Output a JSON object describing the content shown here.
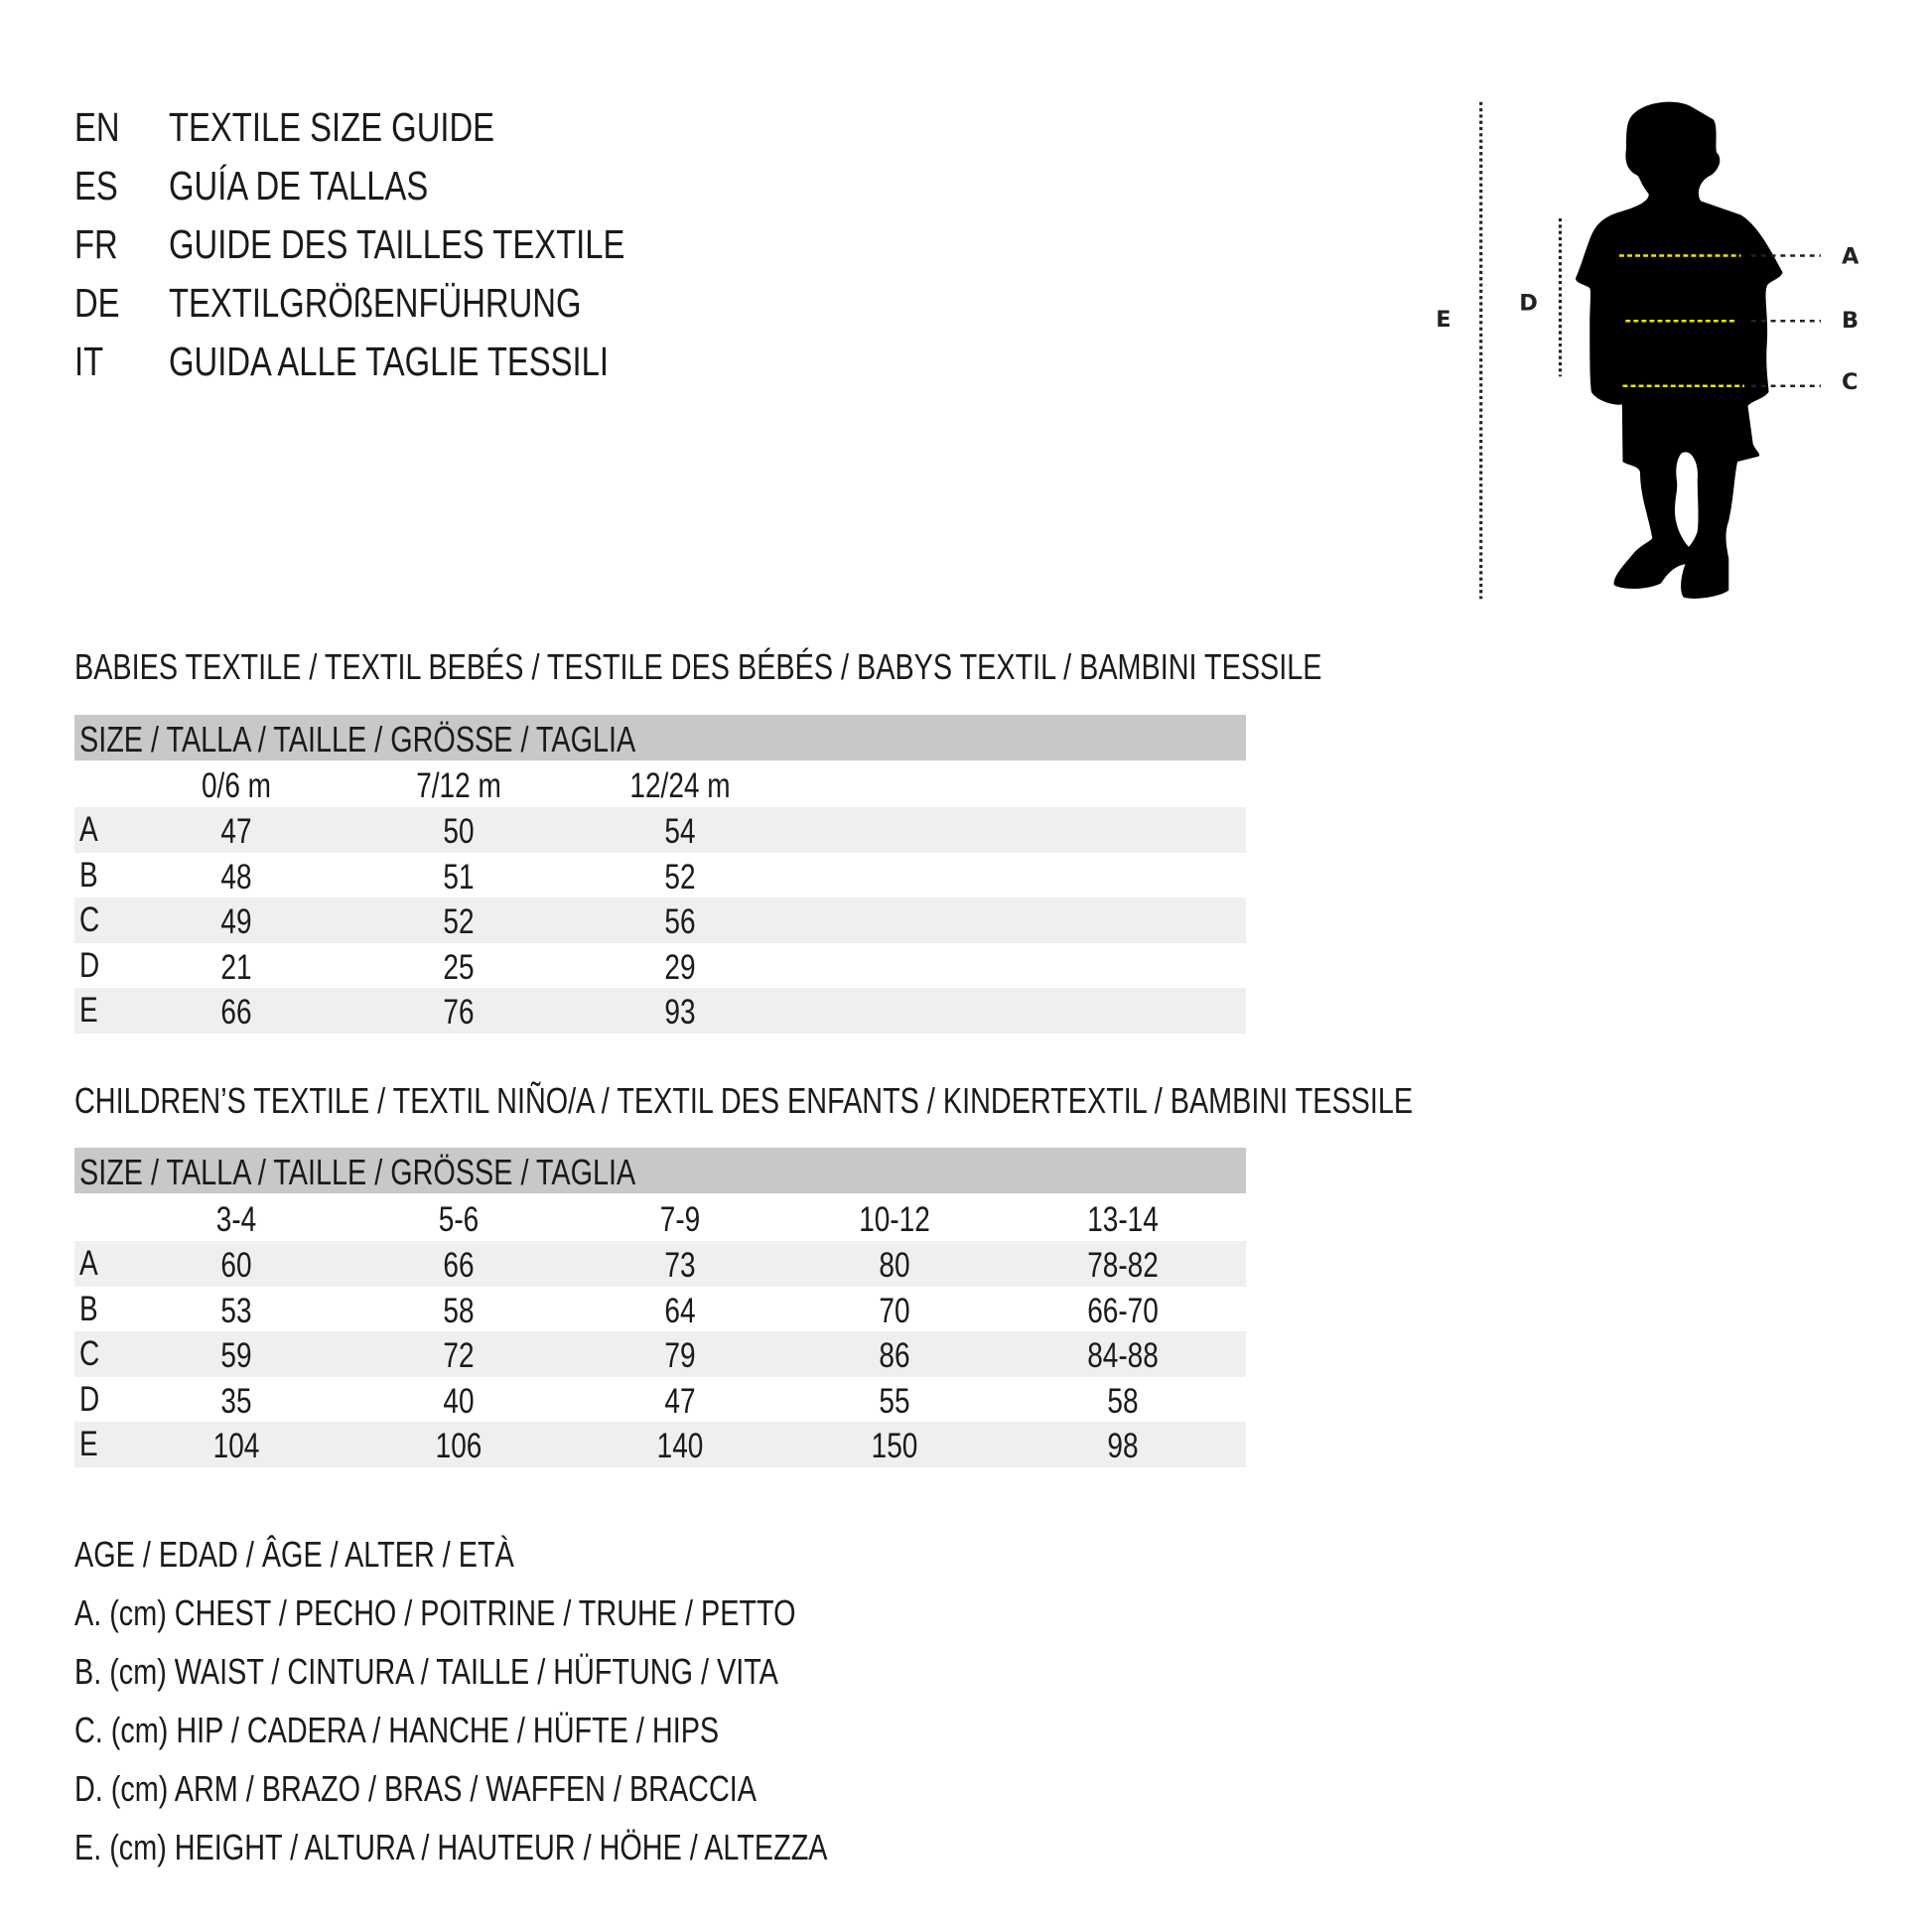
{
  "titles": [
    {
      "lang": "EN",
      "text": "TEXTILE SIZE GUIDE"
    },
    {
      "lang": "ES",
      "text": "GUÍA DE TALLAS"
    },
    {
      "lang": "FR",
      "text": "GUIDE DES TAILLES TEXTILE"
    },
    {
      "lang": "DE",
      "text": "TEXTILGRÖßENFÜHRUNG"
    },
    {
      "lang": "IT",
      "text": "GUIDA ALLE TAGLIE TESSILI"
    }
  ],
  "babies": {
    "heading": "BABIES TEXTILE / TEXTIL BEBÉS / TESTILE DES BÉBÉS / BABYS TEXTIL / BAMBINI TESSILE",
    "size_label": "SIZE / TALLA / TAILLE / GRÖSSE / TAGLIA",
    "columns": [
      "0/6 m",
      "7/12 m",
      "12/24 m"
    ],
    "rows": [
      {
        "label": "A",
        "values": [
          "47",
          "50",
          "54"
        ]
      },
      {
        "label": "B",
        "values": [
          "48",
          "51",
          "52"
        ]
      },
      {
        "label": "C",
        "values": [
          "49",
          "52",
          "56"
        ]
      },
      {
        "label": "D",
        "values": [
          "21",
          "25",
          "29"
        ]
      },
      {
        "label": "E",
        "values": [
          "66",
          "76",
          "93"
        ]
      }
    ]
  },
  "children": {
    "heading": "CHILDREN’S TEXTILE / TEXTIL NIÑO/A / TEXTIL DES ENFANTS / KINDERTEXTIL / BAMBINI TESSILE",
    "size_label": "SIZE / TALLA / TAILLE / GRÖSSE / TAGLIA",
    "columns": [
      "3-4",
      "5-6",
      "7-9",
      "10-12",
      "13-14"
    ],
    "rows": [
      {
        "label": "A",
        "values": [
          "60",
          "66",
          "73",
          "80",
          "78-82"
        ]
      },
      {
        "label": "B",
        "values": [
          "53",
          "58",
          "64",
          "70",
          "66-70"
        ]
      },
      {
        "label": "C",
        "values": [
          "59",
          "72",
          "79",
          "86",
          "84-88"
        ]
      },
      {
        "label": "D",
        "values": [
          "35",
          "40",
          "47",
          "55",
          "58"
        ]
      },
      {
        "label": "E",
        "values": [
          "104",
          "106",
          "140",
          "150",
          "98"
        ]
      }
    ]
  },
  "legend": [
    "AGE / EDAD / ÂGE / ALTER / ETÀ",
    "A. (cm) CHEST / PECHO / POITRINE / TRUHE / PETTO",
    "B. (cm) WAIST / CINTURA / TAILLE / HÜFTUNG / VITA",
    "C. (cm) HIP / CADERA / HANCHE / HÜFTE / HIPS",
    "D. (cm) ARM / BRAZO / BRAS / WAFFEN / BRACCIA",
    "E. (cm) HEIGHT / ALTURA / HAUTEUR / HÖHE / ALTEZZA"
  ],
  "figure": {
    "icon": "child-silhouette-icon",
    "labels": {
      "A": "A",
      "B": "B",
      "C": "C",
      "D": "D",
      "E": "E"
    },
    "colors": {
      "guide_yellow": "#f2e600",
      "guide_dark": "#222222"
    }
  }
}
